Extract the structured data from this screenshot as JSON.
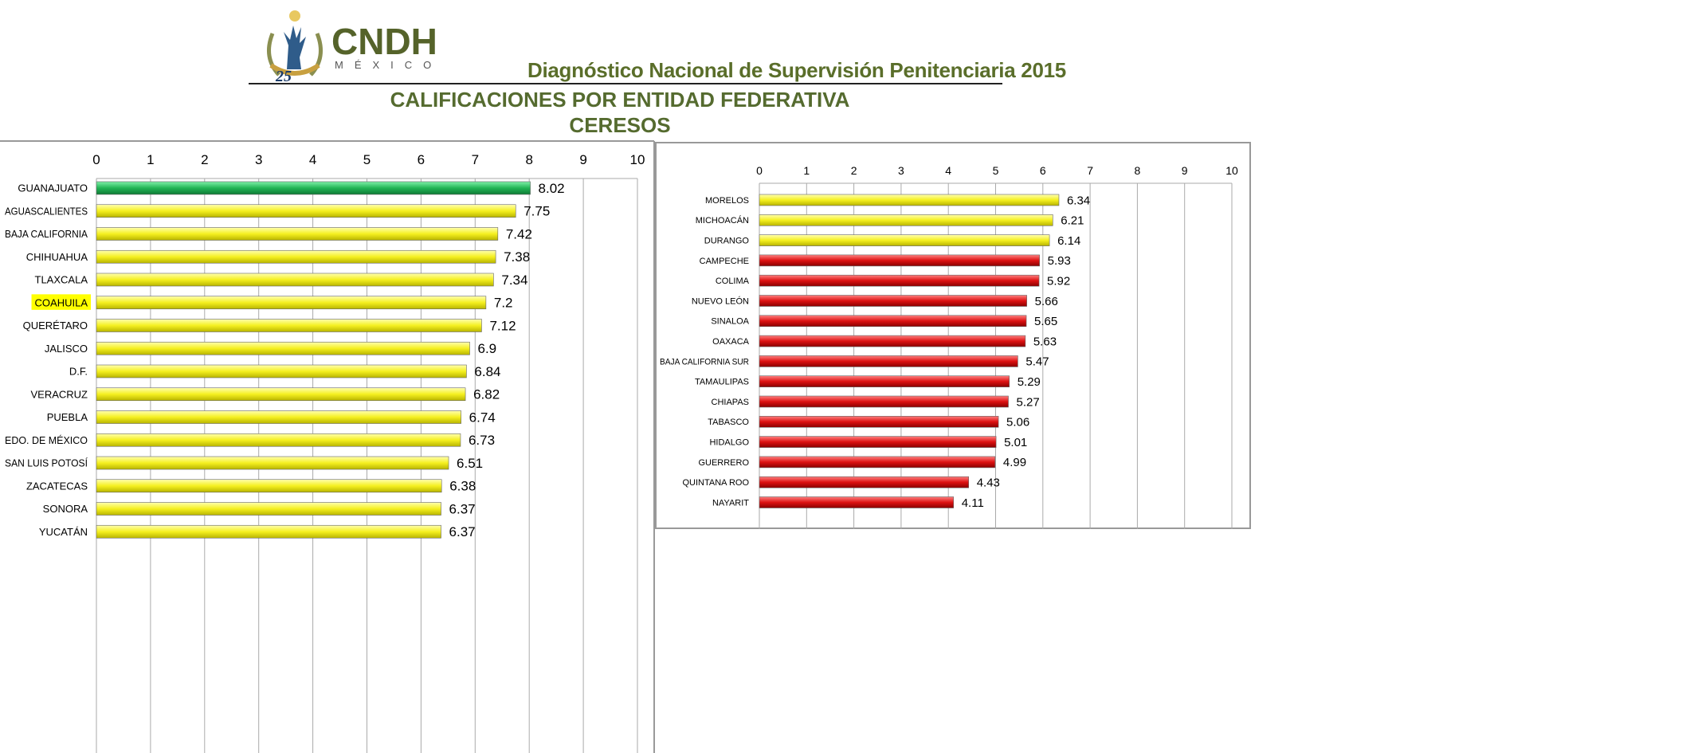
{
  "header": {
    "logo_text": "CNDH MÉXICO 25 Años",
    "subtitle": "Diagnóstico Nacional de Supervisión Penitenciaria 2015",
    "title_line1": "CALIFICACIONES POR ENTIDAD FEDERATIVA",
    "title_line2": "CERESOS"
  },
  "colors": {
    "green": "#2ecc71",
    "yellow": "#ffff33",
    "red": "#dd1111",
    "title": "#556b2f",
    "highlight": "#ffff00"
  },
  "chart_data": [
    {
      "type": "bar",
      "orientation": "horizontal",
      "xlim": [
        0,
        10
      ],
      "ticks": [
        "0",
        "1",
        "2",
        "3",
        "4",
        "5",
        "6",
        "7",
        "8",
        "9",
        "10"
      ],
      "grid": true,
      "highlighted_category": "COAHUILA",
      "categories": [
        "GUANAJUATO",
        "AGUASCALIENTES",
        "BAJA CALIFORNIA",
        "CHIHUAHUA",
        "TLAXCALA",
        "COAHUILA",
        "QUERÉTARO",
        "JALISCO",
        "D.F.",
        "VERACRUZ",
        "PUEBLA",
        "EDO. DE MÉXICO",
        "SAN LUIS POTOSÍ",
        "ZACATECAS",
        "SONORA",
        "YUCATÁN"
      ],
      "values": [
        8.02,
        7.75,
        7.42,
        7.38,
        7.34,
        7.2,
        7.12,
        6.9,
        6.84,
        6.82,
        6.74,
        6.73,
        6.51,
        6.38,
        6.37,
        6.37
      ],
      "labels": [
        "8.02",
        "7.75",
        "7.42",
        "7.38",
        "7.34",
        "7.2",
        "7.12",
        "6.9",
        "6.84",
        "6.82",
        "6.74",
        "6.73",
        "6.51",
        "6.38",
        "6.37",
        "6.37"
      ],
      "bar_colors": [
        "green",
        "yellow",
        "yellow",
        "yellow",
        "yellow",
        "yellow",
        "yellow",
        "yellow",
        "yellow",
        "yellow",
        "yellow",
        "yellow",
        "yellow",
        "yellow",
        "yellow",
        "yellow"
      ]
    },
    {
      "type": "bar",
      "orientation": "horizontal",
      "xlim": [
        0,
        10
      ],
      "ticks": [
        "0",
        "1",
        "2",
        "3",
        "4",
        "5",
        "6",
        "7",
        "8",
        "9",
        "10"
      ],
      "grid": true,
      "categories": [
        "MORELOS",
        "MICHOACÁN",
        "DURANGO",
        "CAMPECHE",
        "COLIMA",
        "NUEVO LEÓN",
        "SINALOA",
        "OAXACA",
        "BAJA CALIFORNIA SUR",
        "TAMAULIPAS",
        "CHIAPAS",
        "TABASCO",
        "HIDALGO",
        "GUERRERO",
        "QUINTANA ROO",
        "NAYARIT"
      ],
      "values": [
        6.34,
        6.21,
        6.14,
        5.93,
        5.92,
        5.66,
        5.65,
        5.63,
        5.47,
        5.29,
        5.27,
        5.06,
        5.01,
        4.99,
        4.43,
        4.11
      ],
      "labels": [
        "6.34",
        "6.21",
        "6.14",
        "5.93",
        "5.92",
        "5.66",
        "5.65",
        "5.63",
        "5.47",
        "5.29",
        "5.27",
        "5.06",
        "5.01",
        "4.99",
        "4.43",
        "4.11"
      ],
      "bar_colors": [
        "yellow",
        "yellow",
        "yellow",
        "red",
        "red",
        "red",
        "red",
        "red",
        "red",
        "red",
        "red",
        "red",
        "red",
        "red",
        "red",
        "red"
      ]
    }
  ]
}
